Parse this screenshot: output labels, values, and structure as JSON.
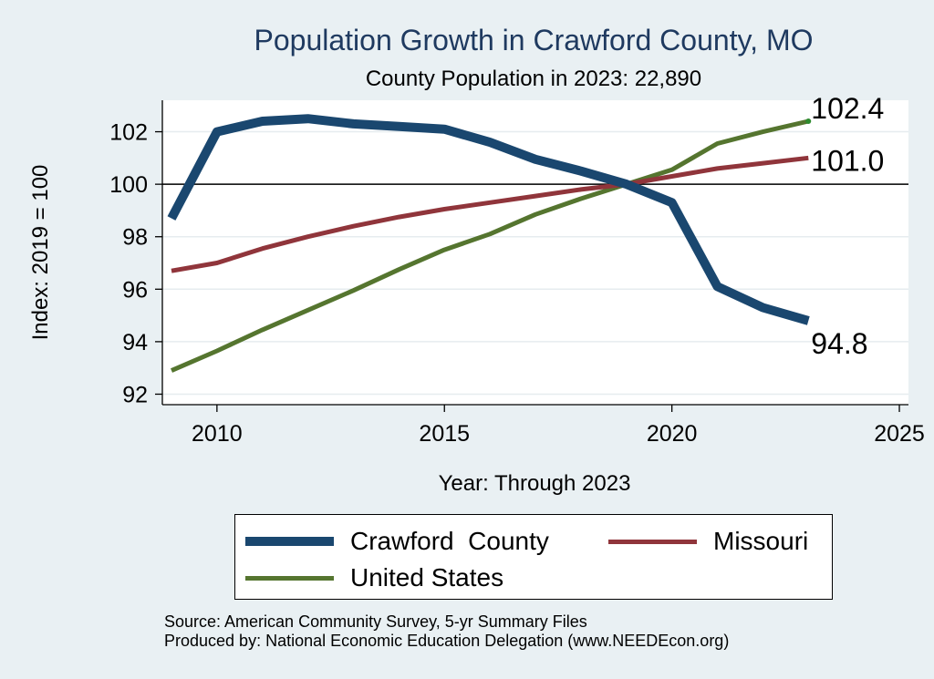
{
  "chart_data": {
    "type": "line",
    "title": "Population Growth in Crawford County, MO",
    "subtitle": "County Population in 2023: 22,890",
    "xlabel": "Year: Through 2023",
    "ylabel": "Index: 2019 = 100",
    "x": [
      2009,
      2010,
      2011,
      2012,
      2013,
      2014,
      2015,
      2016,
      2017,
      2018,
      2019,
      2020,
      2021,
      2022,
      2023
    ],
    "xlim": [
      2008.8,
      2025.2
    ],
    "ylim": [
      91.6,
      103.2
    ],
    "xticks": [
      2010,
      2015,
      2020,
      2025
    ],
    "yticks": [
      92,
      94,
      96,
      98,
      100,
      102
    ],
    "reference_line": 100,
    "grid": true,
    "series": [
      {
        "name": "Crawford  County",
        "color": "#1a476f",
        "values": [
          98.7,
          102.0,
          102.4,
          102.5,
          102.3,
          102.2,
          102.1,
          101.6,
          100.95,
          100.5,
          100.0,
          99.3,
          96.1,
          95.3,
          94.8
        ],
        "end_label": "94.8"
      },
      {
        "name": "Missouri",
        "color": "#90353b",
        "values": [
          96.7,
          97.0,
          97.55,
          98.0,
          98.4,
          98.75,
          99.05,
          99.3,
          99.55,
          99.8,
          100.0,
          100.3,
          100.6,
          100.8,
          101.0
        ],
        "end_label": "101.0"
      },
      {
        "name": "United States",
        "color": "#55752f",
        "values": [
          92.9,
          93.65,
          94.45,
          95.2,
          95.95,
          96.75,
          97.5,
          98.1,
          98.85,
          99.45,
          100.0,
          100.55,
          101.55,
          102.0,
          102.4
        ],
        "end_label": "102.4"
      }
    ],
    "legend": {
      "position": "bottom"
    }
  },
  "footer": {
    "source": "Source: American Community Survey, 5-yr Summary Files",
    "producer": "Produced by: National Economic Education Delegation (www.NEEDEcon.org)"
  }
}
